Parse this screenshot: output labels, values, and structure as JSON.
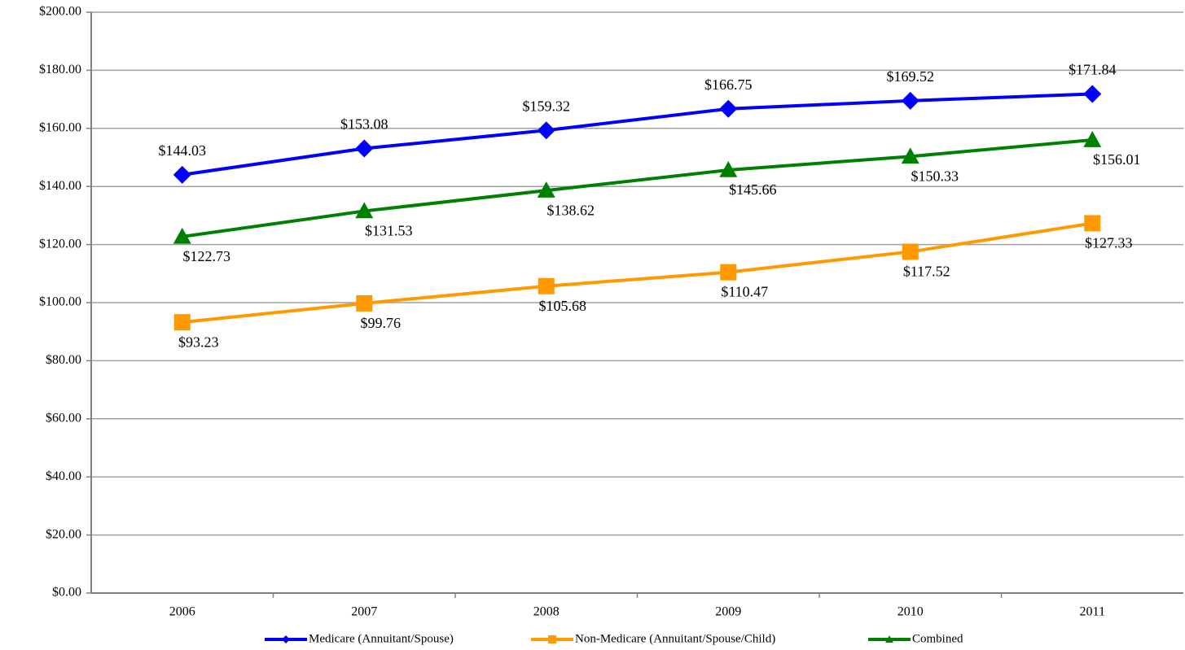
{
  "chart_data": {
    "type": "line",
    "categories": [
      "2006",
      "2007",
      "2008",
      "2009",
      "2010",
      "2011"
    ],
    "series": [
      {
        "name": "Medicare (Annuitant/Spouse)",
        "color": "#0000ff",
        "marker": "diamond",
        "values": [
          144.03,
          153.08,
          159.32,
          166.75,
          169.52,
          171.84
        ],
        "value_labels": [
          "$144.03",
          "$153.08",
          "$159.32",
          "$166.75",
          "$169.52",
          "$171.84"
        ]
      },
      {
        "name": "Non-Medicare (Annuitant/Spouse/Child)",
        "color": "#ff9900",
        "marker": "square",
        "values": [
          93.23,
          99.76,
          105.68,
          110.47,
          117.52,
          127.33
        ],
        "value_labels": [
          "$93.23",
          "$99.76",
          "$105.68",
          "$110.47",
          "$117.52",
          "$127.33"
        ]
      },
      {
        "name": "Combined",
        "color": "#008000",
        "marker": "triangle",
        "values": [
          122.73,
          131.53,
          138.62,
          145.66,
          150.33,
          156.01
        ],
        "value_labels": [
          "$122.73",
          "$131.53",
          "$138.62",
          "$145.66",
          "$150.33",
          "$156.01"
        ]
      }
    ],
    "ylim": [
      0,
      200
    ],
    "yticks": [
      {
        "value": 0,
        "label": "$0.00"
      },
      {
        "value": 20,
        "label": "$20.00"
      },
      {
        "value": 40,
        "label": "$40.00"
      },
      {
        "value": 60,
        "label": "$60.00"
      },
      {
        "value": 80,
        "label": "$80.00"
      },
      {
        "value": 100,
        "label": "$100.00"
      },
      {
        "value": 120,
        "label": "$120.00"
      },
      {
        "value": 140,
        "label": "$140.00"
      },
      {
        "value": 160,
        "label": "$160.00"
      },
      {
        "value": 180,
        "label": "$180.00"
      },
      {
        "value": 200,
        "label": "$200.00"
      }
    ],
    "grid": true,
    "legend": "bottom"
  }
}
